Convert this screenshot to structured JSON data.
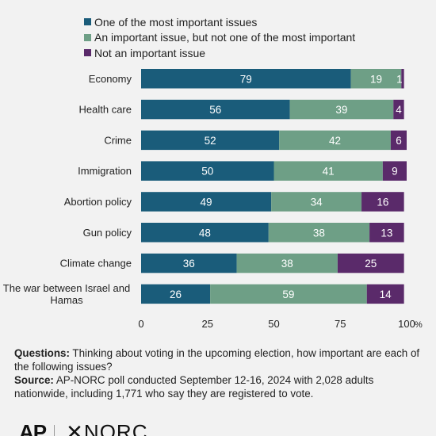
{
  "chart_data": {
    "type": "bar",
    "orientation": "horizontal",
    "stacked": true,
    "categories": [
      "Economy",
      "Health care",
      "Crime",
      "Immigration",
      "Abortion policy",
      "Gun policy",
      "Climate change",
      "The war between Israel and Hamas"
    ],
    "series": [
      {
        "name": "One of the most important issues",
        "color": "#1a5c7a",
        "values": [
          79,
          56,
          52,
          50,
          49,
          48,
          36,
          26
        ]
      },
      {
        "name": "An important issue, but not one of the most important",
        "color": "#6e9f86",
        "values": [
          19,
          39,
          42,
          41,
          34,
          38,
          38,
          59
        ]
      },
      {
        "name": "Not an important issue",
        "color": "#5a2a6a",
        "values": [
          1,
          4,
          6,
          9,
          16,
          13,
          25,
          14
        ]
      }
    ],
    "xlim": [
      0,
      100
    ],
    "xticks": [
      0,
      25,
      50,
      75,
      100
    ],
    "xtick_labels": [
      "0",
      "25",
      "50",
      "75",
      "100"
    ],
    "x_unit": "%",
    "grid": false,
    "legend_placement": "top"
  },
  "notes": {
    "questions_label": "Questions:",
    "questions_text": "Thinking about voting in the upcoming election, how important are each of the following issues?",
    "source_label": "Source:",
    "source_text": "AP-NORC poll conducted September 12-16, 2024 with 2,028 adults nationwide, including 1,771 who say they are registered to vote."
  },
  "logos": {
    "ap": "AP",
    "norc": "NORC"
  }
}
